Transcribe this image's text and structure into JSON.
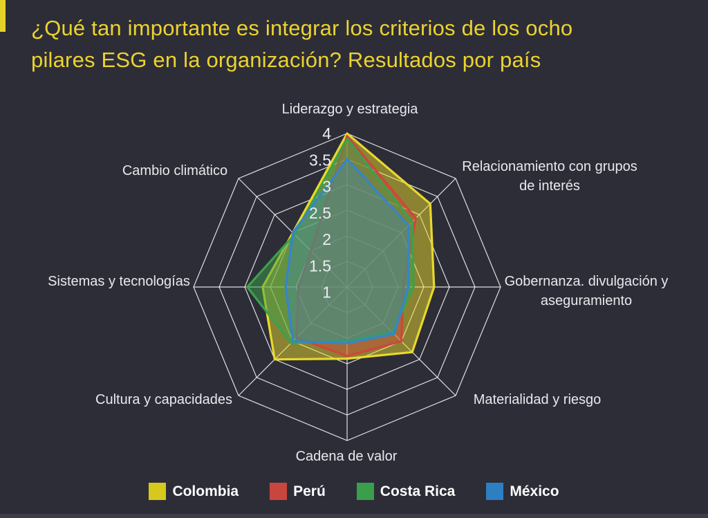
{
  "page": {
    "background_color": "#2d2d38",
    "title_color": "#ecd32f",
    "grid_color": "#ffffff",
    "label_color": "#e9e9ec"
  },
  "title": {
    "full": "¿Qué tan importante es integrar los criterios de los ocho pilares ESG en la organización? Resultados por país",
    "lines": [
      "¿Qué tan importante es integrar los criterios de los ocho",
      "pilares ESG en la organización? Resultados por país"
    ]
  },
  "chart_data": {
    "type": "radar",
    "title": "¿Qué tan importante es integrar los criterios de los ocho pilares ESG en la organización? Resultados por país",
    "scale": {
      "min": 1,
      "max": 4,
      "step": 0.5,
      "tick_labels": [
        "4",
        "3.5",
        "3",
        "2.5",
        "2",
        "1.5",
        "1"
      ]
    },
    "grid": "on",
    "legend_position": "bottom",
    "axes": [
      "Liderazgo y estrategia",
      "Relacionamiento con grupos de interés",
      "Gobernanza. divulgación y aseguramiento",
      "Materialidad y riesgo",
      "Cadena de valor",
      "Cultura y capacidades",
      "Sistemas y tecnologías",
      "Cambio climático"
    ],
    "series": [
      {
        "name": "Colombia",
        "color": "#e9d92b",
        "fill_opacity": 0.5,
        "values": [
          4.0,
          3.3,
          2.7,
          2.8,
          2.4,
          3.0,
          2.65,
          2.5
        ]
      },
      {
        "name": "Perú",
        "color": "#cf463d",
        "fill_opacity": 0.45,
        "values": [
          3.95,
          2.9,
          2.1,
          2.5,
          2.35,
          2.4,
          1.95,
          2.0
        ]
      },
      {
        "name": "Costa Rica",
        "color": "#3da14c",
        "fill_opacity": 0.5,
        "values": [
          3.9,
          2.8,
          2.3,
          2.25,
          2.05,
          2.55,
          2.95,
          2.45
        ]
      },
      {
        "name": "México",
        "color": "#3585c9",
        "fill_opacity": 0.32,
        "values": [
          3.5,
          2.7,
          2.2,
          2.3,
          2.1,
          2.5,
          2.2,
          2.5
        ]
      }
    ]
  },
  "legend": {
    "items": [
      {
        "label": "Colombia",
        "color": "#d6c81d"
      },
      {
        "label": "Perú",
        "color": "#c9463e"
      },
      {
        "label": "Costa Rica",
        "color": "#3a9e4b"
      },
      {
        "label": "México",
        "color": "#2e7fc2"
      }
    ]
  }
}
